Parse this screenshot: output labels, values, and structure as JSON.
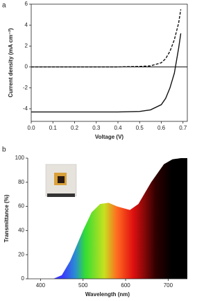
{
  "chart_data": [
    {
      "type": "line",
      "panel_label": "a",
      "x_label": "Voltage (V)",
      "y_label": "Current density (mA cm⁻²)",
      "x": [
        0,
        0.1,
        0.2,
        0.3,
        0.4,
        0.5,
        0.55,
        0.6,
        0.62,
        0.64,
        0.66,
        0.68,
        0.69
      ],
      "series": [
        {
          "color": "#111111",
          "dash": false,
          "values": [
            -4.3,
            -4.3,
            -4.3,
            -4.3,
            -4.3,
            -4.25,
            -4.1,
            -3.6,
            -3.0,
            -2.0,
            -0.6,
            1.8,
            3.2
          ]
        },
        {
          "color": "#111111",
          "dash": true,
          "values": [
            0,
            0,
            0,
            0,
            0,
            0.05,
            0.1,
            0.4,
            0.8,
            1.5,
            2.6,
            4.2,
            5.5
          ]
        }
      ],
      "hline": 0,
      "frame": true,
      "xlim": [
        0,
        0.72
      ],
      "xticks": [
        {
          "value": 0,
          "label": "0.0"
        },
        0.1,
        0.2,
        0.3,
        0.4,
        0.5,
        0.6,
        0.7
      ],
      "ylim": [
        -5.2,
        6
      ],
      "yticks": [
        -4,
        -2,
        0,
        2,
        4,
        6
      ]
    },
    {
      "type": "area",
      "panel_label": "b",
      "x_label": "Wavelength (nm)",
      "y_label": "Transmittance (%)",
      "x": [
        370,
        430,
        450,
        470,
        500,
        520,
        540,
        560,
        580,
        610,
        630,
        660,
        690,
        710,
        730,
        745
      ],
      "series": [
        {
          "color": "spectrum",
          "values": [
            0,
            0,
            3,
            15,
            40,
            55,
            62,
            63,
            60,
            57,
            62,
            80,
            95,
            99,
            100,
            100
          ]
        }
      ],
      "frame": false,
      "xlim": [
        370,
        745
      ],
      "xticks": [
        400,
        500,
        600,
        700
      ],
      "ylim": [
        0,
        100
      ],
      "yticks": [
        0,
        20,
        40,
        60,
        80,
        100
      ]
    }
  ]
}
